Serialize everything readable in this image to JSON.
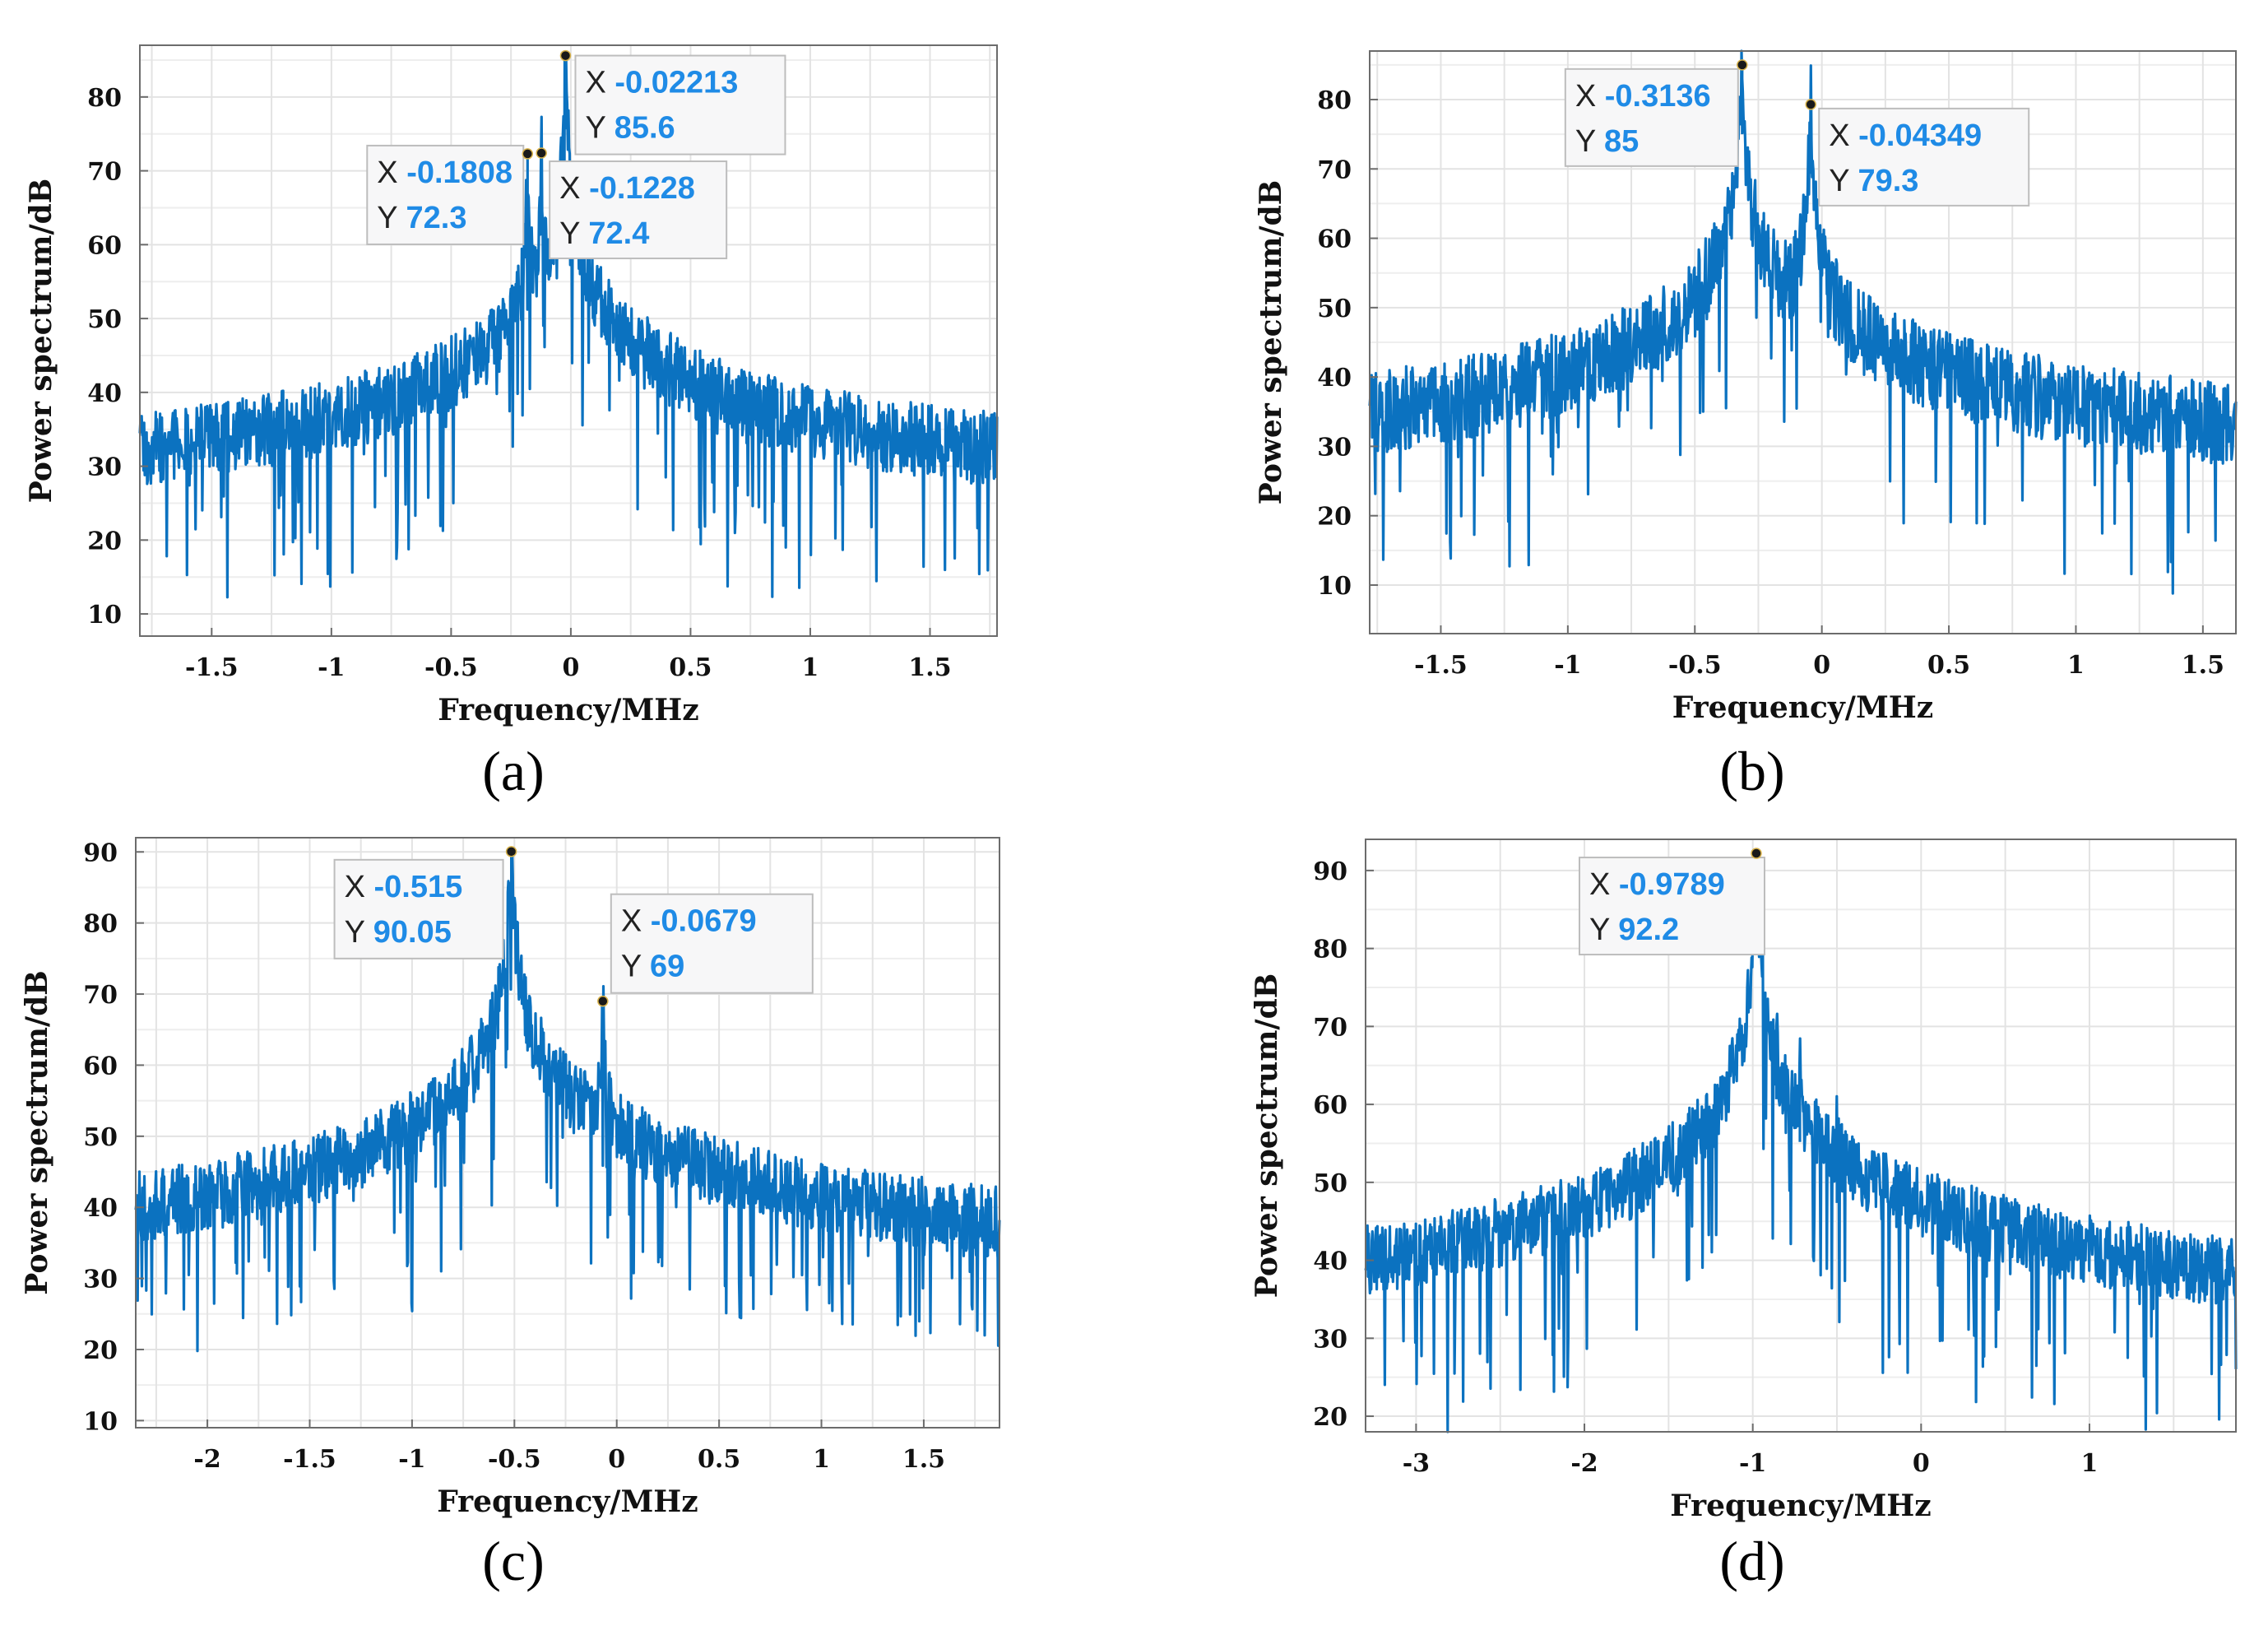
{
  "figure": {
    "panel_captions": [
      "(a)",
      "(b)",
      "(c)",
      "(d)"
    ]
  },
  "chart_data": [
    {
      "type": "line",
      "panel": "(a)",
      "xlabel": "Frequency/MHz",
      "ylabel": "Power spectrum/dB",
      "xlim": [
        -1.8,
        1.78
      ],
      "ylim": [
        7,
        87
      ],
      "xticks": [
        -1.5,
        -1,
        -0.5,
        0,
        0.5,
        1,
        1.5
      ],
      "xtick_labels": [
        "-1.5",
        "-1",
        "-0.5",
        "0",
        "0.5",
        "1",
        "1.5"
      ],
      "yticks": [
        10,
        20,
        30,
        40,
        50,
        60,
        70,
        80
      ],
      "ytick_labels": [
        "10",
        "20",
        "30",
        "40",
        "50",
        "60",
        "70",
        "80"
      ],
      "grid": true,
      "color": "#0b72c0",
      "noise_floor_db": 27,
      "noise_span_db": 10,
      "peaks": [
        {
          "x": -0.1808,
          "y": 72.3,
          "width": 0.06
        },
        {
          "x": -0.1228,
          "y": 72.4,
          "width": 0.06
        },
        {
          "x": -0.02213,
          "y": 85.6,
          "width": 0.08
        }
      ],
      "datatips": [
        {
          "x_label": "X",
          "x_value": "-0.1808",
          "y_label": "Y",
          "y_value": "72.3",
          "x": -0.1808,
          "y": 72.3
        },
        {
          "x_label": "X",
          "x_value": "-0.02213",
          "y_label": "Y",
          "y_value": "85.6",
          "x": -0.02213,
          "y": 85.6
        },
        {
          "x_label": "X",
          "x_value": "-0.1228",
          "y_label": "Y",
          "y_value": "72.4",
          "x": -0.1228,
          "y": 72.4
        }
      ]
    },
    {
      "type": "line",
      "panel": "(b)",
      "xlabel": "Frequency/MHz",
      "ylabel": "Power spectrum/dB",
      "xlim": [
        -1.78,
        1.63
      ],
      "ylim": [
        3,
        87
      ],
      "xticks": [
        -1.5,
        -1,
        -0.5,
        0,
        0.5,
        1,
        1.5
      ],
      "xtick_labels": [
        "-1.5",
        "-1",
        "-0.5",
        "0",
        "0.5",
        "1",
        "1.5"
      ],
      "yticks": [
        10,
        20,
        30,
        40,
        50,
        60,
        70,
        80
      ],
      "ytick_labels": [
        "10",
        "20",
        "30",
        "40",
        "50",
        "60",
        "70",
        "80"
      ],
      "grid": true,
      "color": "#0b72c0",
      "noise_floor_db": 26,
      "noise_span_db": 12,
      "peaks": [
        {
          "x": -0.3136,
          "y": 85,
          "width": 0.1
        },
        {
          "x": -0.04349,
          "y": 79.3,
          "width": 0.08
        }
      ],
      "datatips": [
        {
          "x_label": "X",
          "x_value": "-0.3136",
          "y_label": "Y",
          "y_value": "85",
          "x": -0.3136,
          "y": 85
        },
        {
          "x_label": "X",
          "x_value": "-0.04349",
          "y_label": "Y",
          "y_value": "79.3",
          "x": -0.04349,
          "y": 79.3
        }
      ]
    },
    {
      "type": "line",
      "panel": "(c)",
      "xlabel": "Frequency/MHz",
      "ylabel": "Power spectrum/dB",
      "xlim": [
        -2.35,
        1.87
      ],
      "ylim": [
        9,
        92
      ],
      "xticks": [
        -2,
        -1.5,
        -1,
        -0.5,
        0,
        0.5,
        1,
        1.5
      ],
      "xtick_labels": [
        "-2",
        "-1.5",
        "-1",
        "-0.5",
        "0",
        "0.5",
        "1",
        "1.5"
      ],
      "yticks": [
        10,
        20,
        30,
        40,
        50,
        60,
        70,
        80,
        90
      ],
      "ytick_labels": [
        "10",
        "20",
        "30",
        "40",
        "50",
        "60",
        "70",
        "80",
        "90"
      ],
      "grid": true,
      "color": "#0b72c0",
      "noise_floor_db": 27,
      "noise_span_db": 10,
      "peaks": [
        {
          "x": -0.515,
          "y": 90.05,
          "width": 0.14
        },
        {
          "x": -0.0679,
          "y": 69,
          "width": 0.1
        }
      ],
      "datatips": [
        {
          "x_label": "X",
          "x_value": "-0.515",
          "y_label": "Y",
          "y_value": "90.05",
          "x": -0.515,
          "y": 90.05
        },
        {
          "x_label": "X",
          "x_value": "-0.0679",
          "y_label": "Y",
          "y_value": "69",
          "x": -0.0679,
          "y": 69
        }
      ]
    },
    {
      "type": "line",
      "panel": "(d)",
      "xlabel": "Frequency/MHz",
      "ylabel": "Power spectrum/dB",
      "xlim": [
        -3.3,
        1.87
      ],
      "ylim": [
        18,
        94
      ],
      "xticks": [
        -3,
        -2,
        -1,
        0,
        1
      ],
      "xtick_labels": [
        "-3",
        "-2",
        "-1",
        "0",
        "1"
      ],
      "yticks": [
        20,
        30,
        40,
        50,
        60,
        70,
        80,
        90
      ],
      "ytick_labels": [
        "20",
        "30",
        "40",
        "50",
        "60",
        "70",
        "80",
        "90"
      ],
      "grid": true,
      "color": "#0b72c0",
      "noise_floor_db": 27,
      "noise_span_db": 9,
      "peaks": [
        {
          "x": -0.9789,
          "y": 92.2,
          "width": 0.14
        },
        {
          "x": -0.86,
          "y": 69,
          "width": 0.07
        },
        {
          "x": -0.72,
          "y": 64,
          "width": 0.07
        },
        {
          "x": -0.5,
          "y": 55,
          "width": 0.08
        }
      ],
      "datatips": [
        {
          "x_label": "X",
          "x_value": "-0.9789",
          "y_label": "Y",
          "y_value": "92.2",
          "x": -0.9789,
          "y": 92.2
        }
      ]
    }
  ]
}
